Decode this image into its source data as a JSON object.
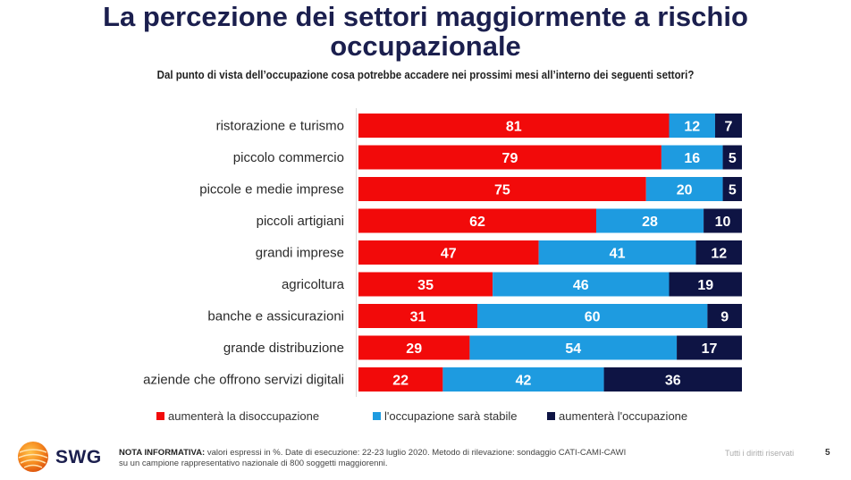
{
  "header": {
    "title_line1": "La percezione dei settori maggiormente a rischio",
    "title_line2": "occupazionale",
    "subtitle": "Dal punto di vista dell’occupazione cosa potrebbe accadere nei prossimi mesi all’interno dei seguenti settori?"
  },
  "chart_data": {
    "type": "bar",
    "orientation": "horizontal",
    "stacked": true,
    "title": "La percezione dei settori maggiormente a rischio occupazionale",
    "subtitle": "Dal punto di vista dell’occupazione cosa potrebbe accadere nei prossimi mesi all’interno dei seguenti settori?",
    "xlabel": "",
    "ylabel": "",
    "xlim": [
      0,
      100
    ],
    "unit": "%",
    "grid": false,
    "legend_position": "bottom",
    "categories": [
      "ristorazione e turismo",
      "piccolo commercio",
      "piccole e medie imprese",
      "piccoli artigiani",
      "grandi imprese",
      "agricoltura",
      "banche e assicurazioni",
      "grande distribuzione",
      "aziende che offrono servizi digitali"
    ],
    "series": [
      {
        "name": "aumenterà la disoccupazione",
        "color": "#f20a0a",
        "values": [
          81,
          79,
          75,
          62,
          47,
          35,
          31,
          29,
          22
        ]
      },
      {
        "name": "l'occupazione sarà stabile",
        "color": "#1e9be0",
        "values": [
          12,
          16,
          20,
          28,
          41,
          46,
          60,
          54,
          42
        ]
      },
      {
        "name": "aumenterà l'occupazione",
        "color": "#0e1444",
        "values": [
          7,
          5,
          5,
          10,
          12,
          19,
          9,
          17,
          36
        ]
      }
    ]
  },
  "footer": {
    "brand": "SWG",
    "note_bold": "NOTA INFORMATIVA:",
    "note_line1": " valori espressi in %. Date di esecuzione: 22-23 luglio 2020. Metodo di rilevazione: sondaggio CATI-CAMI-CAWI",
    "note_line2": "su un campione rappresentativo nazionale di 800 soggetti maggiorenni.",
    "rights": "Tutti i diritti riservati",
    "page_number": "5"
  }
}
